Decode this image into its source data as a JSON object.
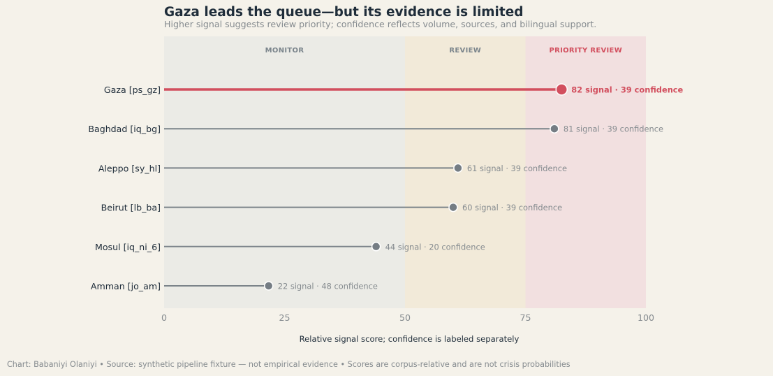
{
  "title": "Gaza leads the queue—but its evidence is limited",
  "subtitle": "Higher signal suggests review priority; confidence reflects volume, sources, and bilingual support.",
  "footer": "Chart: Babaniyi Olaniyi  •  Source: synthetic pipeline fixture — not empirical evidence  •  Scores are corpus-relative and are not crisis probabilities",
  "chart_data": {
    "type": "lollipop",
    "xlabel": "Relative signal score; confidence is labeled separately",
    "xlim": [
      0,
      100
    ],
    "xticks": [
      0,
      25,
      50,
      75,
      100
    ],
    "grid": false,
    "bands": [
      {
        "label": "MONITOR",
        "from": 0,
        "to": 50,
        "color": "#ebebe6",
        "label_color": "#7a848b"
      },
      {
        "label": "REVIEW",
        "from": 50,
        "to": 75,
        "color": "#f2ead9",
        "label_color": "#7a848b"
      },
      {
        "label": "PRIORITY REVIEW",
        "from": 75,
        "to": 100,
        "color": "#f2e0e0",
        "label_color": "#d24f5e"
      }
    ],
    "items": [
      {
        "label": "Gaza  [ps_gz]",
        "signal": 82.5,
        "value_label": "82 signal · 39 confidence",
        "highlight": true
      },
      {
        "label": "Baghdad  [iq_bg]",
        "signal": 81,
        "value_label": "81 signal · 39 confidence",
        "highlight": false
      },
      {
        "label": "Aleppo  [sy_hl]",
        "signal": 61,
        "value_label": "61 signal · 39 confidence",
        "highlight": false
      },
      {
        "label": "Beirut  [lb_ba]",
        "signal": 60,
        "value_label": "60 signal · 39 confidence",
        "highlight": false
      },
      {
        "label": "Mosul  [iq_ni_6]",
        "signal": 44,
        "value_label": "44 signal · 20 confidence",
        "highlight": false
      },
      {
        "label": "Amman  [jo_am]",
        "signal": 21.7,
        "value_label": "22 signal · 48 confidence",
        "highlight": false
      }
    ],
    "colors": {
      "highlight": "#d24f5e",
      "default_line": "#7b8389",
      "default_dot": "#757d84",
      "default_text": "#858b8f",
      "category_text": "#1f2d3a",
      "tick_text": "#858b8f"
    }
  }
}
